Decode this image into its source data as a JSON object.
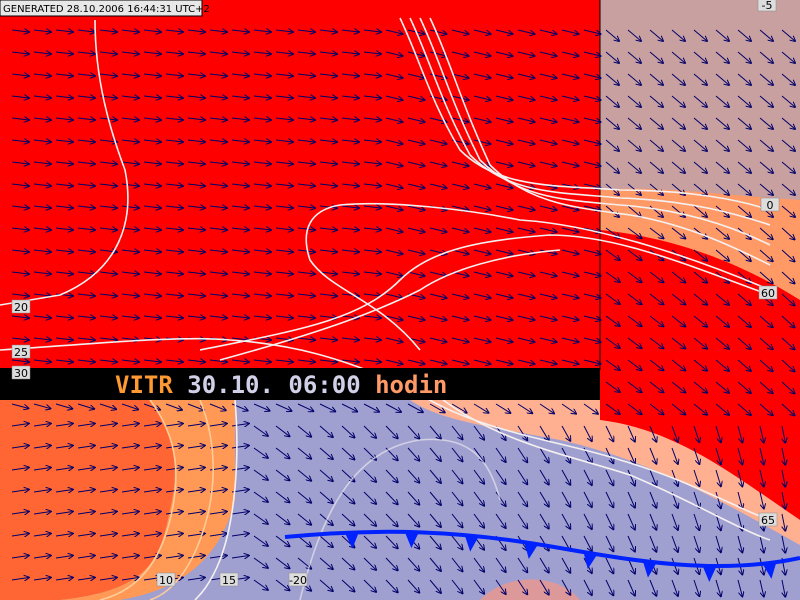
{
  "header": {
    "generated": "GENERATED 28.10.2006 16:44:31 UTC+2"
  },
  "banner": {
    "model": "VITR",
    "time": "30.10. 06:00",
    "unit": "hodin"
  },
  "contour_labels": [
    20,
    25,
    30,
    0,
    -5,
    60,
    65,
    -20,
    15,
    10
  ]
}
